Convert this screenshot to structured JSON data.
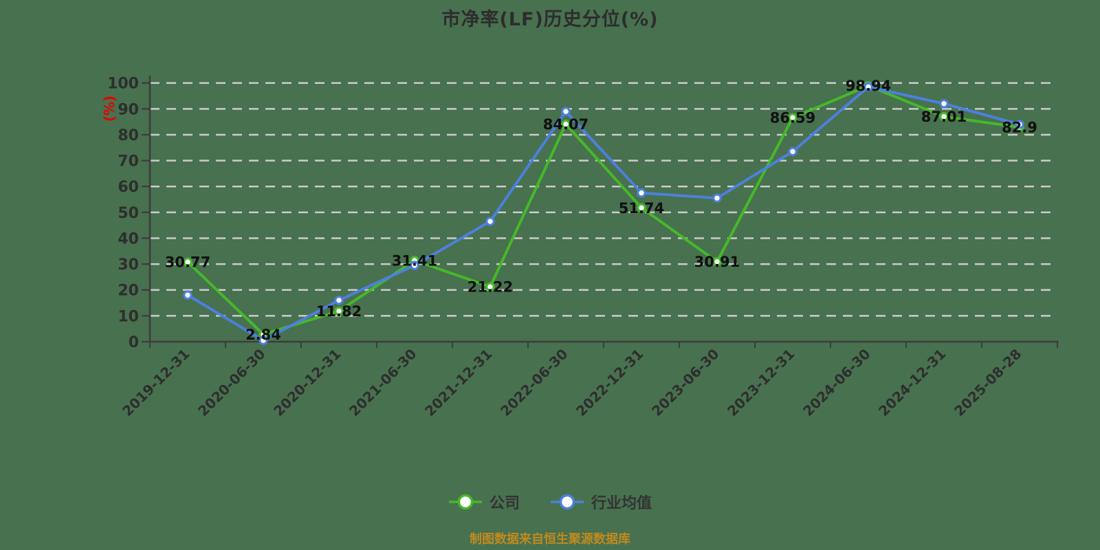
{
  "title": "市净率(LF)历史分位(%)",
  "footer": "制图数据来自恒生聚源数据库",
  "colors": {
    "background": "#48714f",
    "company_line": "#46b82a",
    "industry_line": "#4d80dd",
    "gridline": "#cccccc",
    "axis": "#3d3d3d",
    "tick_label": "#2e2e2e",
    "point_label": "#101010",
    "unit_label": "#e60000",
    "title": "#2d2d2d",
    "caption": "#c08a1e",
    "marker_fill": "#ffffff"
  },
  "chart_data": {
    "type": "line",
    "title": "市净率(LF)历史分位(%)",
    "unit_label": "(%)",
    "source_note": "制图数据来自恒生聚源数据库",
    "categories": [
      "2019-12-31",
      "2020-06-30",
      "2020-12-31",
      "2021-06-30",
      "2021-12-31",
      "2022-06-30",
      "2022-12-31",
      "2023-06-30",
      "2023-12-31",
      "2024-06-30",
      "2024-12-31",
      "2025-08-28"
    ],
    "series": [
      {
        "key": "company",
        "name": "公司",
        "color": "#46b82a",
        "show_point_labels": true,
        "values": [
          30.77,
          2.84,
          11.82,
          31.41,
          21.22,
          84.07,
          51.74,
          30.91,
          86.59,
          98.94,
          87.01,
          82.9
        ]
      },
      {
        "key": "industry-average",
        "name": "行业均值",
        "color": "#4d80dd",
        "show_point_labels": false,
        "values": [
          18,
          0.5,
          16,
          29.5,
          46.5,
          89,
          57.5,
          55.5,
          73.5,
          98.5,
          92,
          84
        ]
      }
    ],
    "ylim": [
      0,
      100
    ],
    "y_ticks": [
      0,
      10,
      20,
      30,
      40,
      50,
      60,
      70,
      80,
      90,
      100
    ],
    "grid": "horizontal-dashed",
    "legend_position": "bottom"
  }
}
